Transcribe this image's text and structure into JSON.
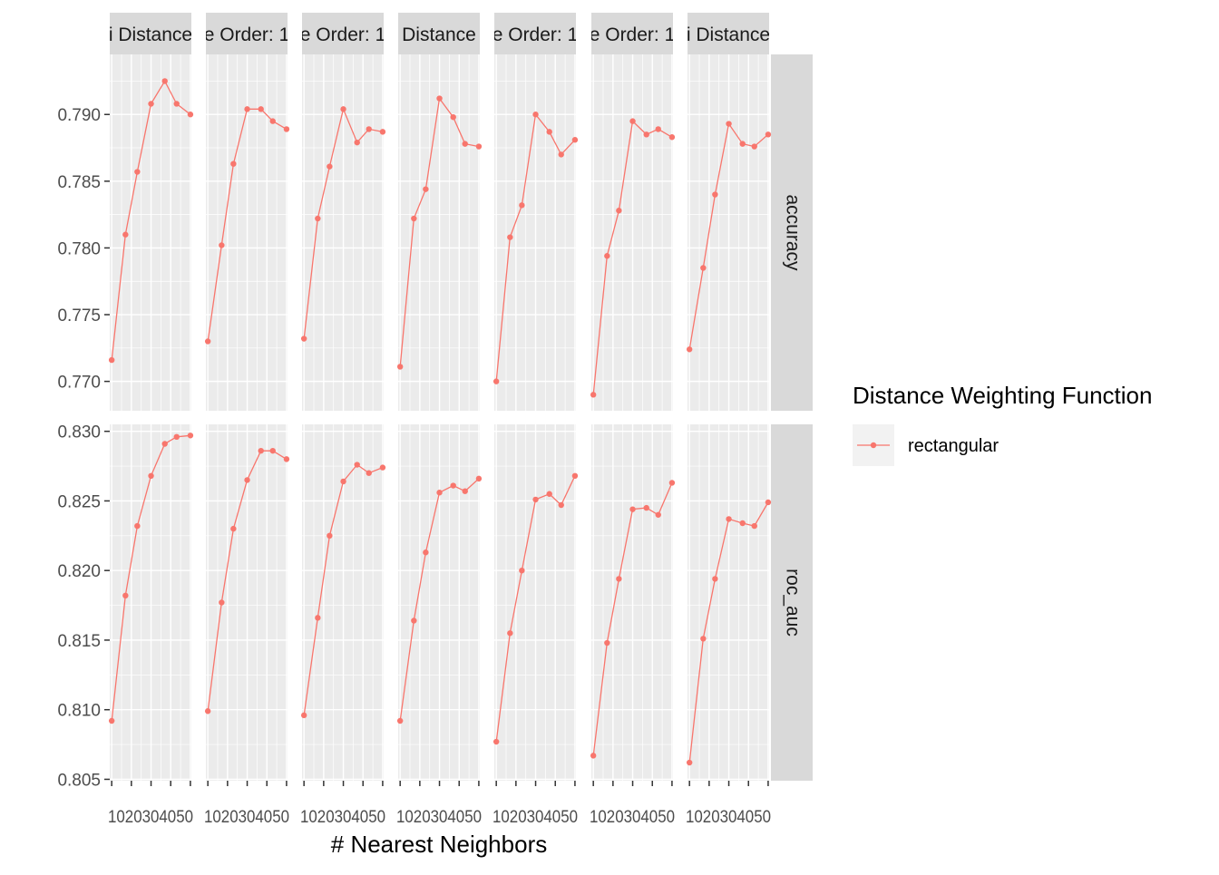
{
  "chart_data": {
    "type": "line",
    "facet_columns": [
      "i Distance",
      "e Order: 1",
      "e Order: 1",
      "Distance",
      "e Order: 1",
      "e Order: 1",
      "i Distance"
    ],
    "facet_rows": [
      "accuracy",
      "roc_auc"
    ],
    "xlabel": "# Nearest Neighbors",
    "ylabel": "",
    "x": [
      10,
      20,
      30,
      40,
      50
    ],
    "x_points": [
      10,
      17,
      23,
      30,
      37,
      43,
      50
    ],
    "xtick_text": "1020304050",
    "xlim": [
      9,
      50.5
    ],
    "rows": [
      {
        "name": "accuracy",
        "ylim": [
          0.7678,
          0.7945
        ],
        "yticks": [
          0.77,
          0.775,
          0.78,
          0.785,
          0.79
        ],
        "ytick_labels": [
          "0.770",
          "0.775",
          "0.780",
          "0.785",
          "0.790"
        ],
        "panels": [
          [
            0.7716,
            0.781,
            0.7857,
            0.7908,
            0.7925,
            0.7908,
            0.79
          ],
          [
            0.773,
            0.7802,
            0.7863,
            0.7904,
            0.7904,
            0.7895,
            0.7889
          ],
          [
            0.7732,
            0.7822,
            0.7861,
            0.7904,
            0.7879,
            0.7889,
            0.7887
          ],
          [
            0.7711,
            0.7822,
            0.7844,
            0.7912,
            0.7898,
            0.7878,
            0.7876
          ],
          [
            0.77,
            0.7808,
            0.7832,
            0.79,
            0.7887,
            0.787,
            0.7881
          ],
          [
            0.769,
            0.7794,
            0.7828,
            0.7895,
            0.7885,
            0.7889,
            0.7883
          ],
          [
            0.7724,
            0.7785,
            0.784,
            0.7893,
            0.7878,
            0.7876,
            0.7885
          ]
        ]
      },
      {
        "name": "roc_auc",
        "ylim": [
          0.8049,
          0.8305
        ],
        "yticks": [
          0.805,
          0.81,
          0.815,
          0.82,
          0.825,
          0.83
        ],
        "ytick_labels": [
          "0.805",
          "0.810",
          "0.815",
          "0.820",
          "0.825",
          "0.830"
        ],
        "panels": [
          [
            0.8092,
            0.8182,
            0.8232,
            0.8268,
            0.8291,
            0.8296,
            0.8297
          ],
          [
            0.8099,
            0.8177,
            0.823,
            0.8265,
            0.8286,
            0.8286,
            0.828
          ],
          [
            0.8096,
            0.8166,
            0.8225,
            0.8264,
            0.8276,
            0.827,
            0.8274
          ],
          [
            0.8092,
            0.8164,
            0.8213,
            0.8256,
            0.8261,
            0.8257,
            0.8266
          ],
          [
            0.8077,
            0.8155,
            0.82,
            0.8251,
            0.8255,
            0.8247,
            0.8268
          ],
          [
            0.8067,
            0.8148,
            0.8194,
            0.8244,
            0.8245,
            0.824,
            0.8263
          ],
          [
            0.8062,
            0.8151,
            0.8194,
            0.8237,
            0.8234,
            0.8232,
            0.8249
          ]
        ]
      }
    ],
    "legend": {
      "title": "Distance Weighting Function",
      "items": [
        "rectangular"
      ],
      "placement": "right"
    },
    "series_color": "#f8766d",
    "panel_background": "#ebebeb",
    "strip_background": "#d9d9d9",
    "grid": true
  }
}
